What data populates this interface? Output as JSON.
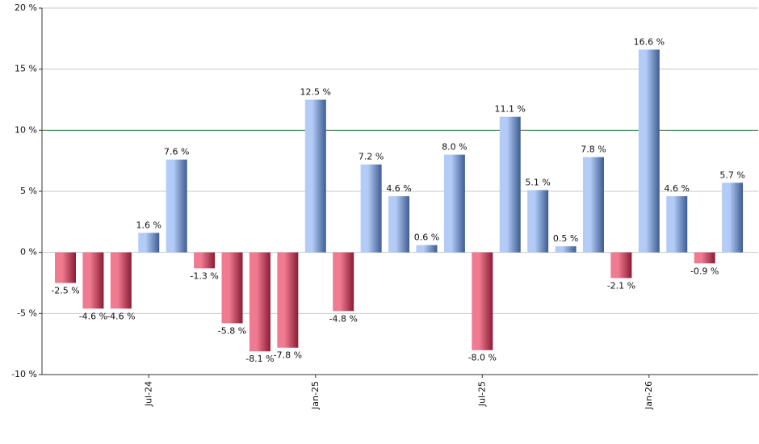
{
  "chart_data": {
    "type": "bar",
    "categories": [
      null,
      null,
      null,
      "Jul-24",
      null,
      null,
      null,
      null,
      null,
      "Jan-25",
      null,
      null,
      null,
      null,
      null,
      "Jul-25",
      null,
      null,
      null,
      null,
      null,
      "Jan-26",
      null,
      null,
      null
    ],
    "values": [
      -2.5,
      -4.6,
      -4.6,
      1.6,
      7.6,
      -1.3,
      -5.8,
      -8.1,
      -7.8,
      12.5,
      -4.8,
      7.2,
      4.6,
      0.6,
      8.0,
      -8.0,
      11.1,
      5.1,
      0.5,
      7.8,
      -2.1,
      16.6,
      4.6,
      -0.9,
      5.7
    ],
    "value_labels": [
      "-2.5 %",
      "-4.6 %",
      "-4.6 %",
      "1.6 %",
      "7.6 %",
      "-1.3 %",
      "-5.8 %",
      "-8.1 %",
      "-7.8 %",
      "12.5 %",
      "-4.8 %",
      "7.2 %",
      "4.6 %",
      "0.6 %",
      "8.0 %",
      "-8.0 %",
      "11.1 %",
      "5.1 %",
      "0.5 %",
      "7.8 %",
      "-2.1 %",
      "16.6 %",
      "4.6 %",
      "-0.9 %",
      "5.7 %"
    ],
    "positive_colors": [
      "#b3ccf7",
      "#3e5c91"
    ],
    "negative_colors": [
      "#f07a90",
      "#8a1c34"
    ],
    "ylim": [
      -10,
      20
    ],
    "yticks": [
      {
        "value": -10,
        "label": "-10 %"
      },
      {
        "value": -5,
        "label": "-5 %"
      },
      {
        "value": 0,
        "label": "0 %"
      },
      {
        "value": 5,
        "label": "5 %"
      },
      {
        "value": 10,
        "label": "10 %"
      },
      {
        "value": 15,
        "label": "15 %"
      },
      {
        "value": 20,
        "label": "20 %"
      }
    ],
    "grid": true,
    "reference_line": {
      "value": 10,
      "color": "#2e7d32"
    }
  }
}
